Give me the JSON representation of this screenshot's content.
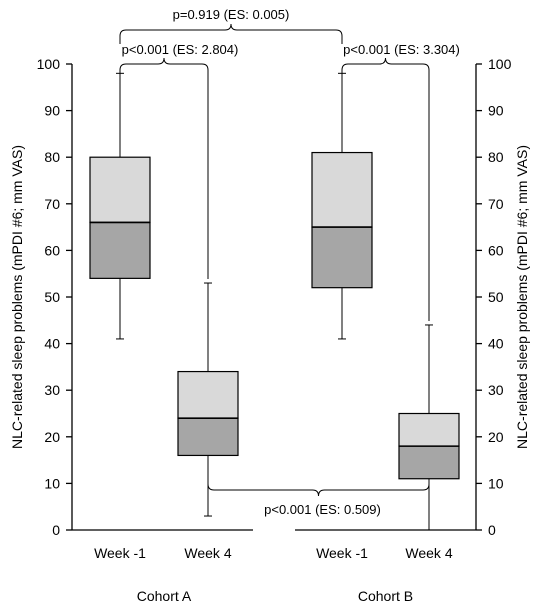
{
  "chart_data": {
    "type": "box",
    "title": "",
    "ylabel": "NLC-related sleep problems (mPDI #6; mm VAS)",
    "ylim": [
      0,
      100
    ],
    "yticks": [
      0,
      10,
      20,
      30,
      40,
      50,
      60,
      70,
      80,
      90,
      100
    ],
    "y_axis_sides": [
      "left",
      "right"
    ],
    "grid": false,
    "colors": {
      "upper_box": "#d9d9d9",
      "lower_box": "#a6a6a6",
      "line": "#000000"
    },
    "groups": [
      {
        "label": "Cohort A",
        "categories": [
          "Week -1",
          "Week 4"
        ]
      },
      {
        "label": "Cohort B",
        "categories": [
          "Week -1",
          "Week 4"
        ]
      }
    ],
    "boxes": [
      {
        "group": "Cohort A",
        "category": "Week -1",
        "min": 41,
        "q1": 54,
        "median": 66,
        "q3": 80,
        "max": 98
      },
      {
        "group": "Cohort A",
        "category": "Week 4",
        "min": 3,
        "q1": 16,
        "median": 24,
        "q3": 34,
        "max": 53
      },
      {
        "group": "Cohort B",
        "category": "Week -1",
        "min": 41,
        "q1": 52,
        "median": 65,
        "q3": 81,
        "max": 98
      },
      {
        "group": "Cohort B",
        "category": "Week 4",
        "min": 0,
        "q1": 11,
        "median": 18,
        "q3": 25,
        "max": 44
      }
    ],
    "comparisons": [
      {
        "label": "p=0.919 (ES: 0.005)",
        "between": [
          "Cohort A Week -1",
          "Cohort B Week -1"
        ]
      },
      {
        "label": "p<0.001 (ES: 2.804)",
        "between": [
          "Cohort A Week -1",
          "Cohort A Week 4"
        ]
      },
      {
        "label": "p<0.001 (ES: 3.304)",
        "between": [
          "Cohort B Week -1",
          "Cohort B Week 4"
        ]
      },
      {
        "label": "p<0.001 (ES: 0.509)",
        "between": [
          "Cohort A Week 4",
          "Cohort B Week 4"
        ]
      }
    ]
  }
}
